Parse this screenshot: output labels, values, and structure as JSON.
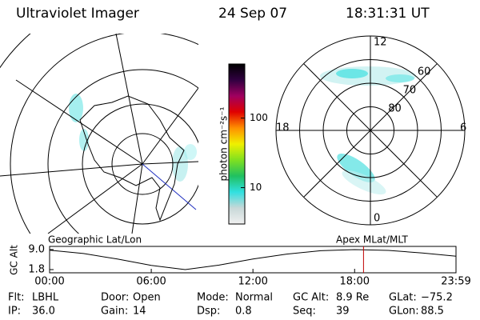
{
  "header": {
    "title": "Ultraviolet Imager",
    "date": "24 Sep 07",
    "time": "18:31:31 UT"
  },
  "colorbar": {
    "label": "photon cm⁻²s⁻¹",
    "clim": [
      3,
      600
    ],
    "log": true,
    "ticks": [
      10,
      100
    ],
    "colors": [
      "#f0f0f0",
      "#c8d8d8",
      "#30e0e0",
      "#20c060",
      "#80e020",
      "#f0f000",
      "#ff9000",
      "#e00000",
      "#a00060",
      "#300040",
      "#000000"
    ]
  },
  "map_left": {
    "label": "Geographic Lat/Lon"
  },
  "map_right": {
    "label": "Apex MLat/MLT",
    "rlim": [
      90,
      50
    ],
    "lat_ticks": [
      60,
      70,
      80
    ],
    "mlt_labels": {
      "top": "12",
      "left": "18",
      "right": "6",
      "bottom": "0"
    }
  },
  "chart_data": {
    "type": "line",
    "y_label": "GC Alt",
    "color": "#000000",
    "x": [
      0,
      2,
      4,
      6,
      8,
      10,
      12,
      14,
      16,
      18,
      20,
      22,
      23.983
    ],
    "values": [
      8.8,
      7.6,
      5.6,
      3.3,
      1.8,
      3.4,
      5.6,
      7.4,
      8.6,
      9.0,
      8.7,
      7.8,
      6.6
    ],
    "xlim": [
      0,
      23.983
    ],
    "xticks": [
      {
        "value": 0,
        "label": "00:00"
      },
      {
        "value": 6,
        "label": "06:00"
      },
      {
        "value": 12,
        "label": "12:00"
      },
      {
        "value": 18,
        "label": "18:00"
      },
      {
        "value": 23.983,
        "label": "23:59"
      }
    ],
    "ylim": [
      1.8,
      9.0
    ],
    "yticks": [
      {
        "value": 9.0,
        "label": "9.0"
      },
      1.8
    ],
    "marker_x": 18.525,
    "marker_color": "#c00000"
  },
  "footer": [
    [
      {
        "label": "Flt:",
        "value": "LBHL"
      },
      {
        "label": "Door:",
        "value": "Open"
      },
      {
        "label": "Mode:",
        "value": "Normal"
      },
      {
        "label": "GC Alt:",
        "value": "8.9 Re"
      },
      {
        "label": "GLat:",
        "value": "−75.2"
      }
    ],
    [
      {
        "label": "IP:",
        "value": "36.0"
      },
      {
        "label": "Gain:",
        "value": "14"
      },
      {
        "label": "Dsp:",
        "value": "0.8"
      },
      {
        "label": "Seq:",
        "value": "39"
      },
      {
        "label": "GLon:",
        "value": "88.5"
      }
    ]
  ]
}
